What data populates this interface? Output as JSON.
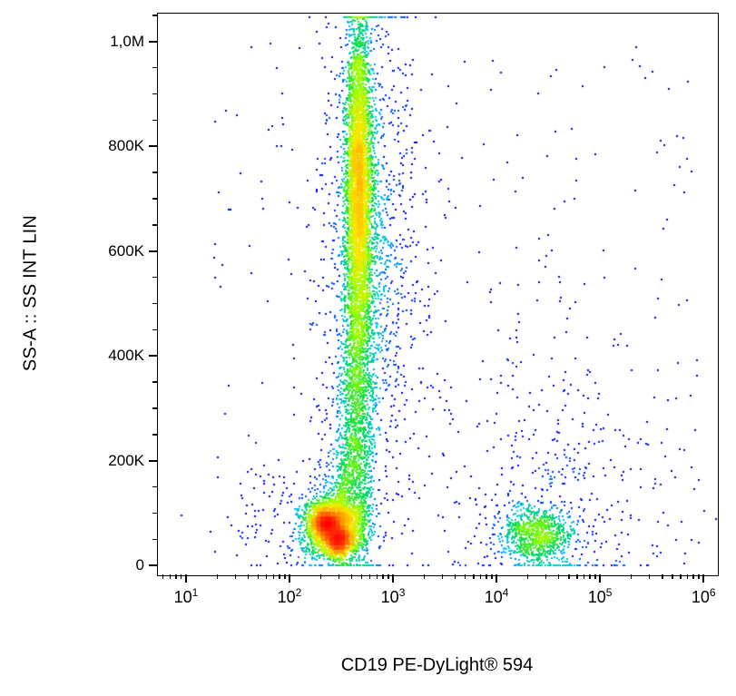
{
  "chart_data": {
    "type": "scatter",
    "subtype": "flow-cytometry-pseudocolor-density-plot",
    "title": "",
    "xlabel": "CD19 PE-DyLight® 594",
    "ylabel": "SS-A :: SS INT LIN",
    "x_scale": "log10",
    "x_range_log10": [
      0.72,
      6.13
    ],
    "x_tick_base": "10",
    "x_tick_exponents": [
      1,
      2,
      3,
      4,
      5,
      6
    ],
    "y_scale": "linear",
    "y_range": [
      -17000,
      1055000
    ],
    "y_ticks": [
      {
        "value": 0,
        "label": "0"
      },
      {
        "value": 200000,
        "label": "200K"
      },
      {
        "value": 400000,
        "label": "400K"
      },
      {
        "value": 600000,
        "label": "600K"
      },
      {
        "value": 800000,
        "label": "800K"
      },
      {
        "value": 1000000,
        "label": "1,0M"
      }
    ],
    "y_minor_tick_step": 50000,
    "grid": false,
    "legend": null,
    "seed": 1337,
    "colormap": "flow-jet",
    "colormap_stops": [
      [
        0.0,
        0,
        0,
        140
      ],
      [
        0.12,
        0,
        0,
        255
      ],
      [
        0.3,
        0,
        190,
        255
      ],
      [
        0.48,
        0,
        220,
        80
      ],
      [
        0.62,
        150,
        255,
        0
      ],
      [
        0.75,
        255,
        230,
        0
      ],
      [
        0.88,
        255,
        120,
        0
      ],
      [
        1.0,
        255,
        0,
        0
      ]
    ],
    "populations": [
      {
        "name": "lymphocytes",
        "n": 2400,
        "x_log_mean": 2.42,
        "x_log_sd": 0.15,
        "y_mean": 75000,
        "y_sd": 30000
      },
      {
        "name": "lymphocytes-core-a",
        "n": 700,
        "x_log_mean": 2.34,
        "x_log_sd": 0.07,
        "y_mean": 82000,
        "y_sd": 16000
      },
      {
        "name": "lymphocytes-core-b",
        "n": 700,
        "x_log_mean": 2.47,
        "x_log_sd": 0.06,
        "y_mean": 48000,
        "y_sd": 13000
      },
      {
        "name": "granulocytes-core",
        "n": 2600,
        "x_log_mean": 2.66,
        "x_log_sd": 0.055,
        "y_mean": 700000,
        "y_sd": 130000
      },
      {
        "name": "granulocytes-mid",
        "n": 1800,
        "x_log_mean": 2.67,
        "x_log_sd": 0.095,
        "y_mean": 600000,
        "y_sd": 200000
      },
      {
        "name": "granulocytes-high",
        "n": 700,
        "x_log_mean": 2.655,
        "x_log_sd": 0.06,
        "y_mean": 880000,
        "y_sd": 90000
      },
      {
        "name": "granulocytes-halo",
        "n": 900,
        "x_log_mean": 2.72,
        "x_log_sd": 0.24,
        "y_mean": 620000,
        "y_sd": 240000
      },
      {
        "name": "granulocytes-tail",
        "n": 1000,
        "x_log_mean": 2.63,
        "x_log_sd": 0.08,
        "y_mean": 280000,
        "y_sd": 140000
      },
      {
        "name": "monocytes",
        "n": 500,
        "x_log_mean": 2.55,
        "x_log_sd": 0.13,
        "y_mean": 165000,
        "y_sd": 60000
      },
      {
        "name": "column-right-sparse",
        "n": 220,
        "x_log_mean": 3.05,
        "x_log_sd": 0.18,
        "y_mean": 550000,
        "y_sd": 260000
      },
      {
        "name": "b-cells-cd19pos",
        "n": 900,
        "x_log_mean": 4.38,
        "x_log_sd": 0.18,
        "y_mean": 60000,
        "y_sd": 27000
      },
      {
        "name": "b-cells-scatter",
        "n": 240,
        "x_log_mean": 4.45,
        "x_log_sd": 0.42,
        "y_mean": 160000,
        "y_sd": 160000
      },
      {
        "name": "right-background",
        "n": 170,
        "x_log_mean": 4.7,
        "x_log_sd": 0.65,
        "y_mean": 120000,
        "y_sd": 130000
      },
      {
        "name": "left-low-scatter",
        "n": 150,
        "x_log_mean": 2.05,
        "x_log_sd": 0.33,
        "y_mean": 90000,
        "y_sd": 60000
      },
      {
        "name": "uniform-background",
        "n": 240,
        "dist": "uniform",
        "x_log_min": 1.2,
        "x_log_max": 6.0,
        "y_min": 5000,
        "y_max": 1000000
      }
    ]
  }
}
